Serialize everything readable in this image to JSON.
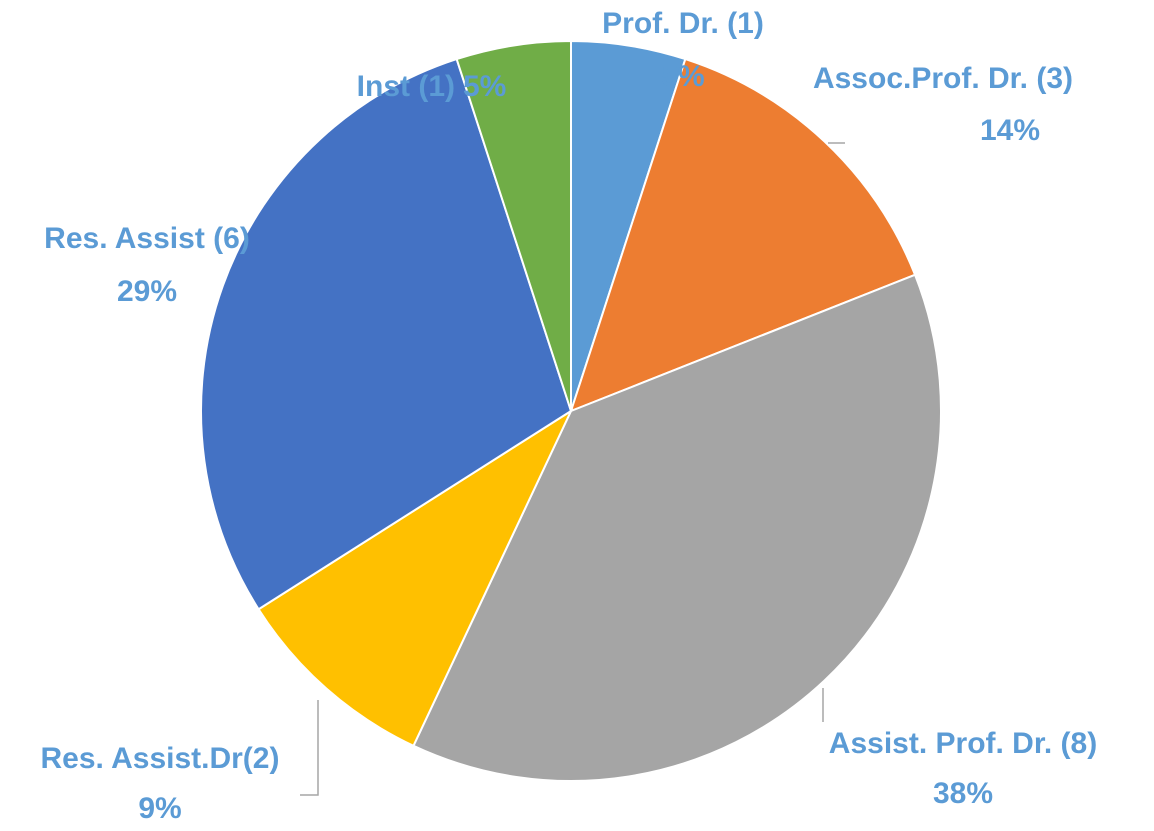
{
  "chart_data": {
    "type": "pie",
    "categories": [
      "Prof. Dr. (1)",
      "Assoc.Prof. Dr. (3)",
      "Assist. Prof. Dr. (8)",
      "Res. Assist.Dr(2)",
      "Res. Assist (6)",
      "Inst (1)"
    ],
    "values": [
      5,
      14,
      38,
      9,
      29,
      5
    ],
    "value_labels": [
      "5%",
      "14%",
      "38%",
      "9%",
      "29%",
      "5%"
    ],
    "colors": [
      "#5b9bd5",
      "#ed7d31",
      "#a5a5a5",
      "#ffc000",
      "#4472c4",
      "#70ad47"
    ]
  }
}
